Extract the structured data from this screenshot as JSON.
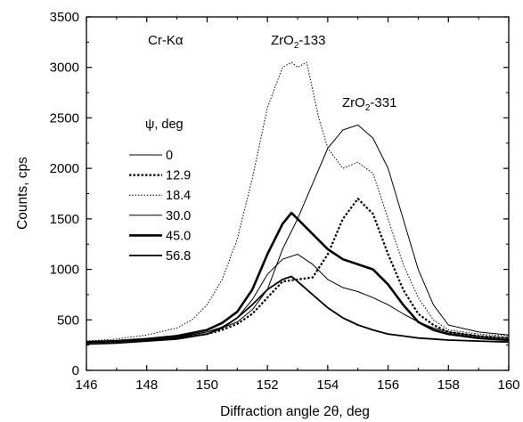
{
  "chart_data": {
    "type": "line",
    "title": "",
    "xlabel": "Diffraction angle 2θ, deg",
    "ylabel": "Counts, cps",
    "xlim": [
      146,
      160
    ],
    "ylim": [
      0,
      3500
    ],
    "xticks": [
      146,
      148,
      150,
      152,
      154,
      156,
      158,
      160
    ],
    "yticks": [
      0,
      500,
      1000,
      1500,
      2000,
      2500,
      3000,
      3500
    ],
    "x_tick_labels": [
      "146",
      "148",
      "150",
      "152",
      "154",
      "156",
      "158",
      "160"
    ],
    "y_tick_labels": [
      "0",
      "500",
      "1000",
      "1500",
      "2000",
      "2500",
      "3000",
      "3500"
    ],
    "grid": false,
    "legend_position": "left",
    "annotations": {
      "radiation": "Cr-Kα",
      "peak1": {
        "base": "ZrO",
        "sub": "2",
        "suffix": "-133"
      },
      "peak2": {
        "base": "ZrO",
        "sub": "2",
        "suffix": "-331"
      }
    },
    "legend_title": "ψ, deg",
    "series": [
      {
        "name": "0",
        "style": "thin-solid",
        "color": "#000000",
        "x": [
          146,
          147,
          148,
          149,
          150,
          150.5,
          151,
          151.5,
          152,
          152.5,
          153,
          153.5,
          154,
          154.5,
          155,
          155.5,
          156,
          156.5,
          157,
          157.5,
          158,
          159,
          160
        ],
        "y": [
          280,
          290,
          305,
          330,
          380,
          420,
          480,
          600,
          800,
          1200,
          1500,
          1850,
          2200,
          2380,
          2430,
          2300,
          2000,
          1500,
          1000,
          650,
          450,
          380,
          350
        ]
      },
      {
        "name": "12.9",
        "style": "thick-dotted",
        "color": "#000000",
        "x": [
          146,
          147,
          148,
          149,
          150,
          150.5,
          151,
          151.5,
          152,
          152.5,
          153,
          153.5,
          154,
          154.5,
          155,
          155.5,
          156,
          156.5,
          157,
          157.5,
          158,
          159,
          160
        ],
        "y": [
          280,
          285,
          300,
          320,
          360,
          400,
          460,
          560,
          720,
          880,
          900,
          920,
          1150,
          1500,
          1700,
          1550,
          1150,
          800,
          560,
          450,
          380,
          340,
          320
        ]
      },
      {
        "name": "18.4",
        "style": "thin-dotted",
        "color": "#000000",
        "x": [
          146,
          147,
          148,
          149,
          149.5,
          150,
          150.5,
          151,
          151.5,
          152,
          152.5,
          152.8,
          153,
          153.3,
          153.7,
          154,
          154.5,
          155,
          155.5,
          156,
          156.5,
          157,
          157.5,
          158,
          159,
          160
        ],
        "y": [
          290,
          310,
          350,
          420,
          500,
          650,
          900,
          1300,
          1900,
          2600,
          3000,
          3050,
          3000,
          3050,
          2500,
          2200,
          2000,
          2060,
          1950,
          1500,
          1050,
          720,
          500,
          400,
          360,
          340
        ]
      },
      {
        "name": "30.0",
        "style": "thin-solid",
        "color": "#000000",
        "x": [
          146,
          147,
          148,
          149,
          150,
          150.5,
          151,
          151.5,
          152,
          152.5,
          153,
          153.5,
          154,
          154.5,
          155,
          155.5,
          156,
          156.5,
          157,
          157.5,
          158,
          159,
          160
        ],
        "y": [
          280,
          285,
          300,
          320,
          380,
          430,
          520,
          700,
          950,
          1100,
          1150,
          1050,
          900,
          820,
          780,
          720,
          650,
          560,
          480,
          420,
          380,
          340,
          320
        ]
      },
      {
        "name": "45.0",
        "style": "thick-solid",
        "color": "#000000",
        "x": [
          146,
          147,
          148,
          149,
          150,
          150.5,
          151,
          151.5,
          152,
          152.5,
          152.8,
          153,
          153.5,
          154,
          154.5,
          155,
          155.5,
          156,
          156.5,
          157,
          157.5,
          158,
          159,
          160
        ],
        "y": [
          280,
          290,
          310,
          340,
          400,
          470,
          580,
          800,
          1150,
          1450,
          1560,
          1500,
          1350,
          1200,
          1100,
          1050,
          1000,
          850,
          650,
          480,
          400,
          360,
          320,
          300
        ]
      },
      {
        "name": "56.8",
        "style": "medium-solid",
        "color": "#000000",
        "x": [
          146,
          147,
          148,
          149,
          150,
          150.5,
          151,
          151.5,
          152,
          152.5,
          152.8,
          153,
          153.5,
          154,
          154.5,
          155,
          155.5,
          156,
          156.5,
          157,
          157.5,
          158,
          159,
          160
        ],
        "y": [
          260,
          270,
          290,
          310,
          360,
          420,
          520,
          650,
          800,
          900,
          930,
          880,
          750,
          620,
          520,
          450,
          400,
          360,
          340,
          320,
          310,
          300,
          290,
          280
        ]
      }
    ]
  }
}
